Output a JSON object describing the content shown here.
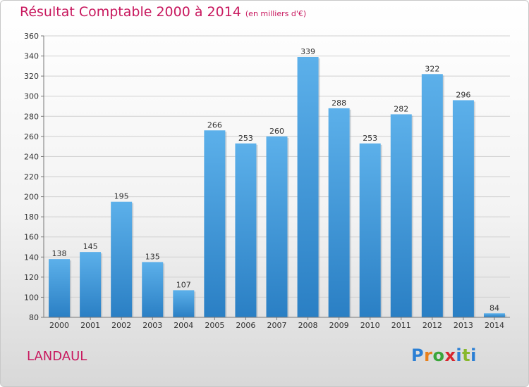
{
  "title": "Résultat Comptable 2000 à 2014",
  "subtitle": "(en milliers d'€)",
  "commune": "LANDAUL",
  "logo_text": "Proxiti",
  "colors": {
    "title": "#c8185e",
    "bar_top": "#5cb0ea",
    "bar_bottom": "#2a7fc4"
  },
  "chart_data": {
    "type": "bar",
    "title": "Résultat Comptable 2000 à 2014",
    "subtitle": "(en milliers d'€)",
    "xlabel": "",
    "ylabel": "",
    "categories": [
      "2000",
      "2001",
      "2002",
      "2003",
      "2004",
      "2005",
      "2006",
      "2007",
      "2008",
      "2009",
      "2010",
      "2011",
      "2012",
      "2013",
      "2014"
    ],
    "values": [
      138,
      145,
      195,
      135,
      107,
      266,
      253,
      260,
      339,
      288,
      253,
      282,
      322,
      296,
      84
    ],
    "ylim": [
      80,
      360
    ],
    "yticks": [
      80,
      100,
      120,
      140,
      160,
      180,
      200,
      220,
      240,
      260,
      280,
      300,
      320,
      340,
      360
    ],
    "grid": true,
    "legend": "none"
  }
}
